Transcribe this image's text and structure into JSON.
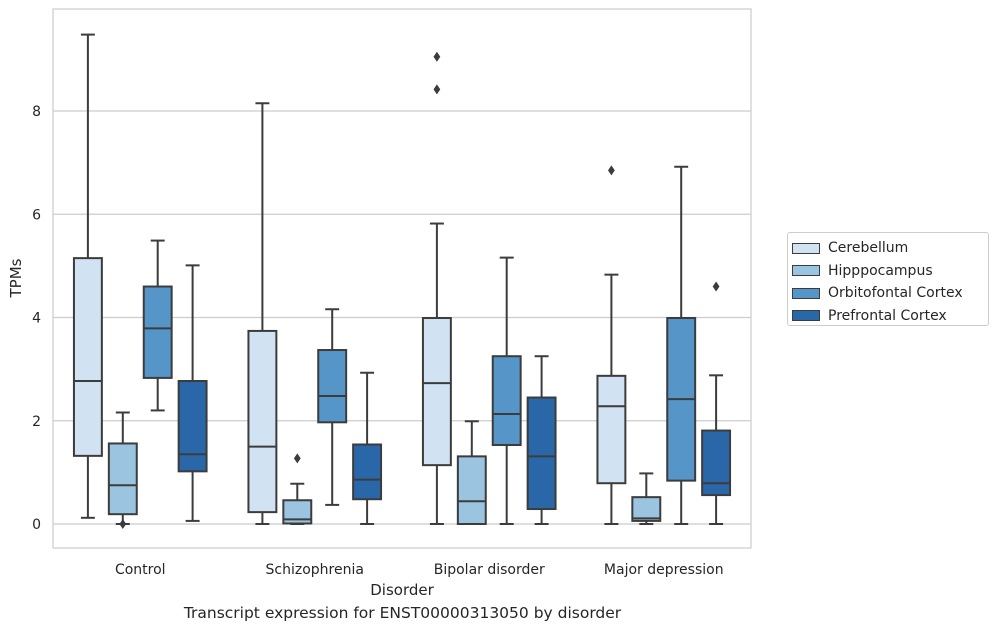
{
  "chart_data": {
    "type": "box",
    "title": "",
    "xlabel": "Disorder",
    "ylabel": "TPMs",
    "ylim": [
      -0.45,
      9.95
    ],
    "yticks": [
      0,
      2,
      4,
      6,
      8
    ],
    "grid": "horizontal",
    "legend_position": "right",
    "categories": [
      "Control",
      "Schizophrenia",
      "Bipolar disorder",
      "Major depression"
    ],
    "series": [
      {
        "name": "Cerebellum",
        "color": "#d1e2f2",
        "boxes": [
          {
            "whisker_low": 0.12,
            "q1": 1.32,
            "median": 2.77,
            "q3": 5.15,
            "whisker_high": 9.48,
            "outliers": []
          },
          {
            "whisker_low": 0.0,
            "q1": 0.23,
            "median": 1.5,
            "q3": 3.74,
            "whisker_high": 8.15,
            "outliers": []
          },
          {
            "whisker_low": 0.0,
            "q1": 1.14,
            "median": 2.73,
            "q3": 3.99,
            "whisker_high": 5.82,
            "outliers": [
              8.42,
              9.05
            ]
          },
          {
            "whisker_low": 0.0,
            "q1": 0.79,
            "median": 2.28,
            "q3": 2.87,
            "whisker_high": 4.83,
            "outliers": [
              6.85
            ]
          }
        ]
      },
      {
        "name": "Hipppocampus",
        "color": "#9ac4df",
        "boxes": [
          {
            "whisker_low": 0.0,
            "q1": 0.19,
            "median": 0.75,
            "q3": 1.56,
            "whisker_high": 2.16,
            "outliers": [
              0.0
            ]
          },
          {
            "whisker_low": 0.0,
            "q1": 0.01,
            "median": 0.09,
            "q3": 0.46,
            "whisker_high": 0.78,
            "outliers": [
              1.27
            ]
          },
          {
            "whisker_low": 0.0,
            "q1": 0.0,
            "median": 0.44,
            "q3": 1.31,
            "whisker_high": 1.99,
            "outliers": []
          },
          {
            "whisker_low": 0.0,
            "q1": 0.06,
            "median": 0.11,
            "q3": 0.52,
            "whisker_high": 0.98,
            "outliers": []
          }
        ]
      },
      {
        "name": "Orbitofontal Cortex",
        "color": "#5595c8",
        "boxes": [
          {
            "whisker_low": 2.2,
            "q1": 2.83,
            "median": 3.79,
            "q3": 4.6,
            "whisker_high": 5.49,
            "outliers": []
          },
          {
            "whisker_low": 0.37,
            "q1": 1.97,
            "median": 2.48,
            "q3": 3.37,
            "whisker_high": 4.16,
            "outliers": []
          },
          {
            "whisker_low": 0.0,
            "q1": 1.53,
            "median": 2.13,
            "q3": 3.25,
            "whisker_high": 5.16,
            "outliers": []
          },
          {
            "whisker_low": 0.0,
            "q1": 0.84,
            "median": 2.42,
            "q3": 3.99,
            "whisker_high": 6.92,
            "outliers": []
          }
        ]
      },
      {
        "name": "Prefrontal Cortex",
        "color": "#2a67a8",
        "boxes": [
          {
            "whisker_low": 0.06,
            "q1": 1.02,
            "median": 1.35,
            "q3": 2.77,
            "whisker_high": 5.01,
            "outliers": []
          },
          {
            "whisker_low": 0.0,
            "q1": 0.48,
            "median": 0.86,
            "q3": 1.54,
            "whisker_high": 2.93,
            "outliers": []
          },
          {
            "whisker_low": 0.0,
            "q1": 0.29,
            "median": 1.31,
            "q3": 2.45,
            "whisker_high": 3.25,
            "outliers": []
          },
          {
            "whisker_low": 0.0,
            "q1": 0.56,
            "median": 0.79,
            "q3": 1.81,
            "whisker_high": 2.88,
            "outliers": [
              4.6
            ]
          }
        ]
      }
    ]
  },
  "caption": "Transcript expression for ENST00000313050 by disorder"
}
